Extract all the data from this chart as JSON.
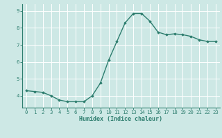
{
  "x": [
    0,
    1,
    2,
    3,
    4,
    5,
    6,
    7,
    8,
    9,
    10,
    11,
    12,
    13,
    14,
    15,
    16,
    17,
    18,
    19,
    20,
    21,
    22,
    23
  ],
  "y": [
    4.3,
    4.25,
    4.2,
    4.0,
    3.75,
    3.65,
    3.65,
    3.65,
    4.0,
    4.75,
    6.1,
    7.2,
    8.3,
    8.85,
    8.85,
    8.4,
    7.75,
    7.6,
    7.65,
    7.6,
    7.5,
    7.3,
    7.2,
    7.2
  ],
  "xlabel": "Humidex (Indice chaleur)",
  "ylim": [
    3.3,
    9.4
  ],
  "xlim": [
    -0.5,
    23.5
  ],
  "yticks": [
    4,
    5,
    6,
    7,
    8,
    9
  ],
  "xticks": [
    0,
    1,
    2,
    3,
    4,
    5,
    6,
    7,
    8,
    9,
    10,
    11,
    12,
    13,
    14,
    15,
    16,
    17,
    18,
    19,
    20,
    21,
    22,
    23
  ],
  "line_color": "#2d7d6e",
  "bg_color": "#cde8e5",
  "grid_color": "#ffffff",
  "marker": "D",
  "marker_size": 1.8,
  "linewidth": 1.0,
  "tick_fontsize": 5.2,
  "xlabel_fontsize": 6.0
}
